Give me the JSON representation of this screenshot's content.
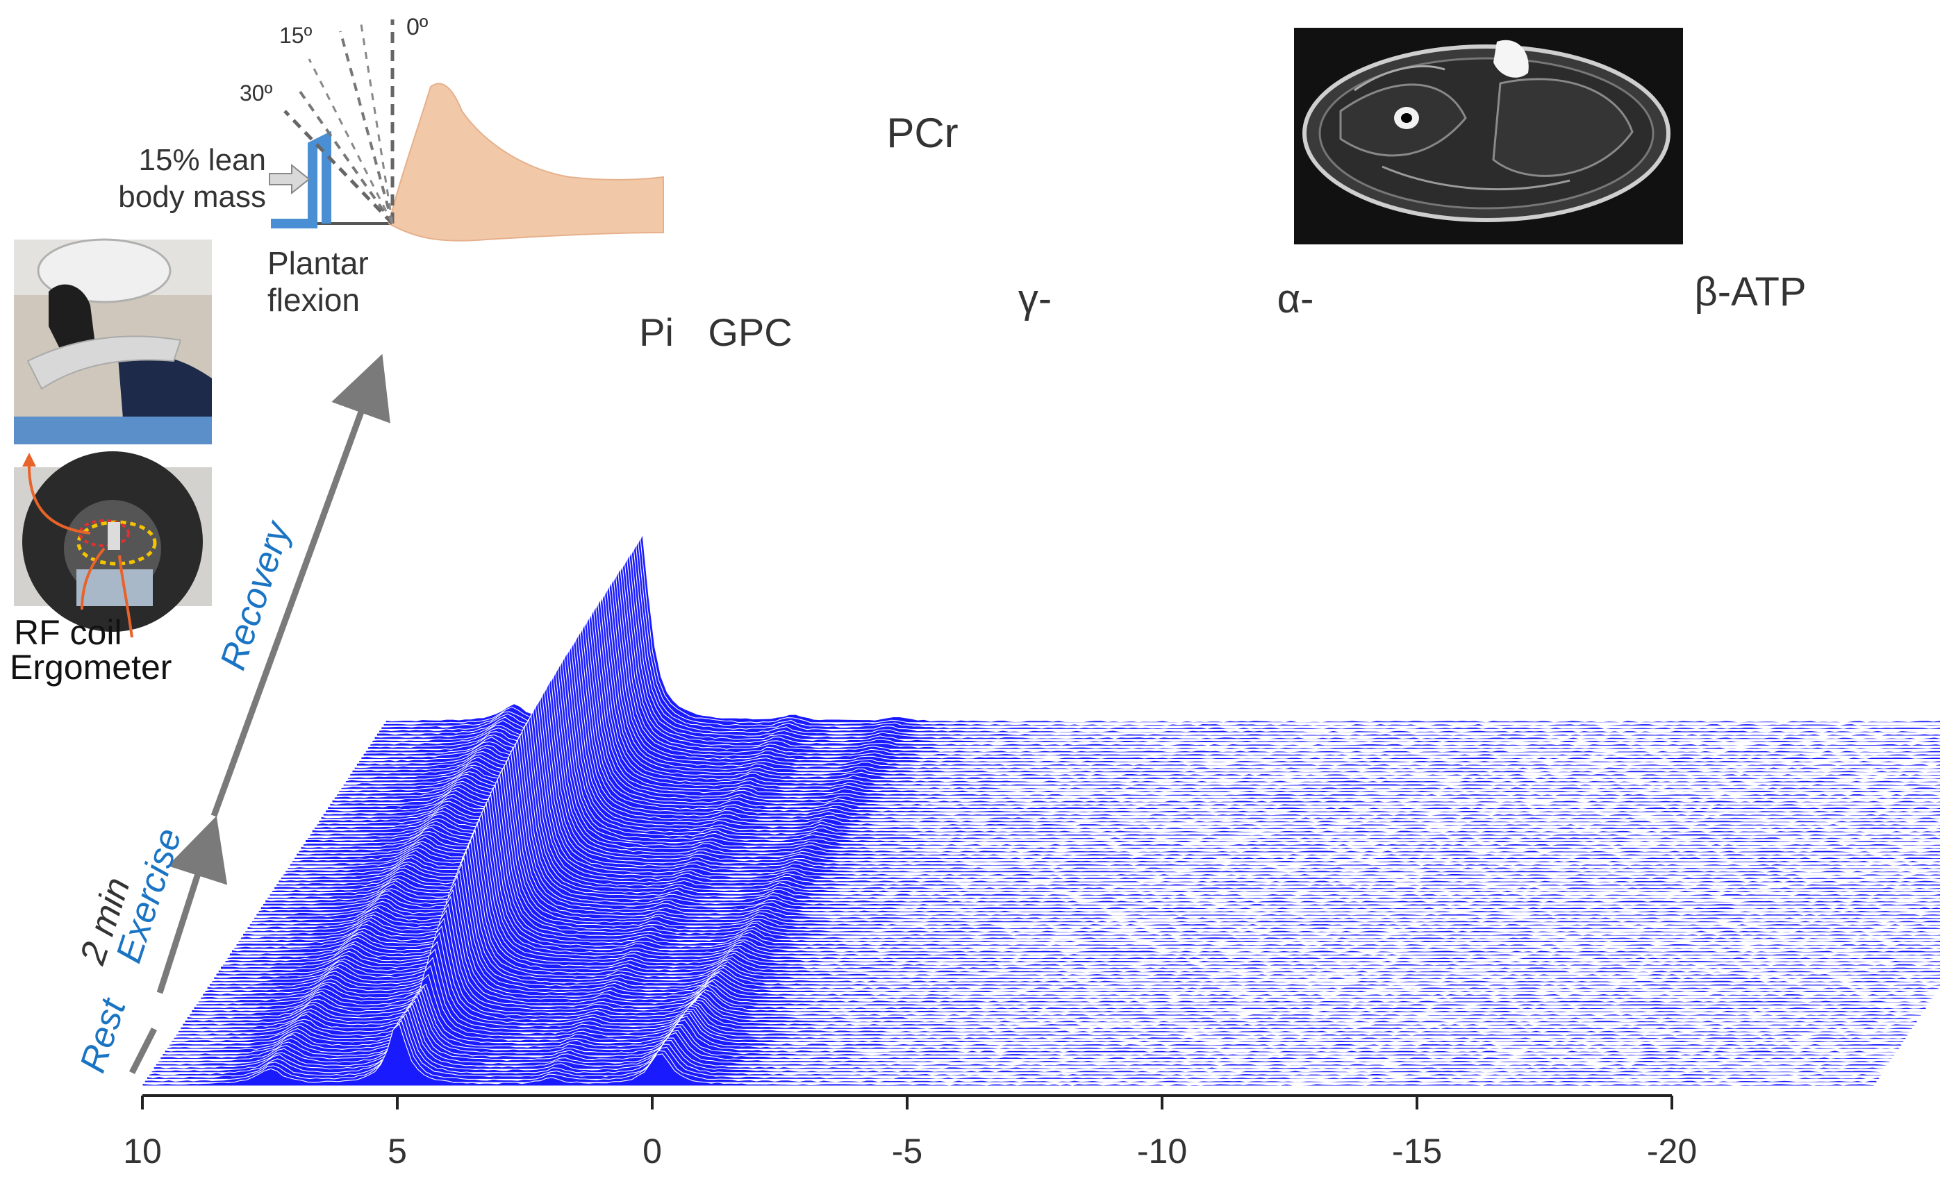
{
  "chart_data": {
    "type": "line",
    "subtype": "stacked-spectra",
    "xlabel": "",
    "ylabel": "",
    "x_reversed": true,
    "xlim": [
      10,
      -20
    ],
    "xticks": [
      "10",
      "5",
      "0",
      "-5",
      "-10",
      "-15",
      "-20"
    ],
    "peaks": [
      {
        "label": "Pi",
        "ppm": 0
      },
      {
        "label": "GPC",
        "ppm": 2.0
      },
      {
        "label": "PCr",
        "ppm": 5.0
      },
      {
        "label": "γ-",
        "ppm": 7.5
      },
      {
        "label": "α-",
        "ppm": 12.6
      },
      {
        "label": "β-ATP",
        "ppm": 16.2
      }
    ],
    "phases": [
      "Rest",
      "Exercise",
      "Recovery"
    ],
    "exercise_duration": "2 min",
    "line_color": "#1a1aff"
  },
  "setup": {
    "angles": [
      "15º",
      "0º",
      "30º"
    ],
    "load": [
      "15% lean",
      "body mass"
    ],
    "movement": [
      "Plantar",
      "flexion"
    ],
    "photo_labels": [
      "RF coil",
      "Ergometer"
    ]
  },
  "colors": {
    "spectra": "#1a1aff",
    "phase_text": "#1a74c4",
    "arrow": "#7a7a7a",
    "accent": "#e8632a"
  }
}
